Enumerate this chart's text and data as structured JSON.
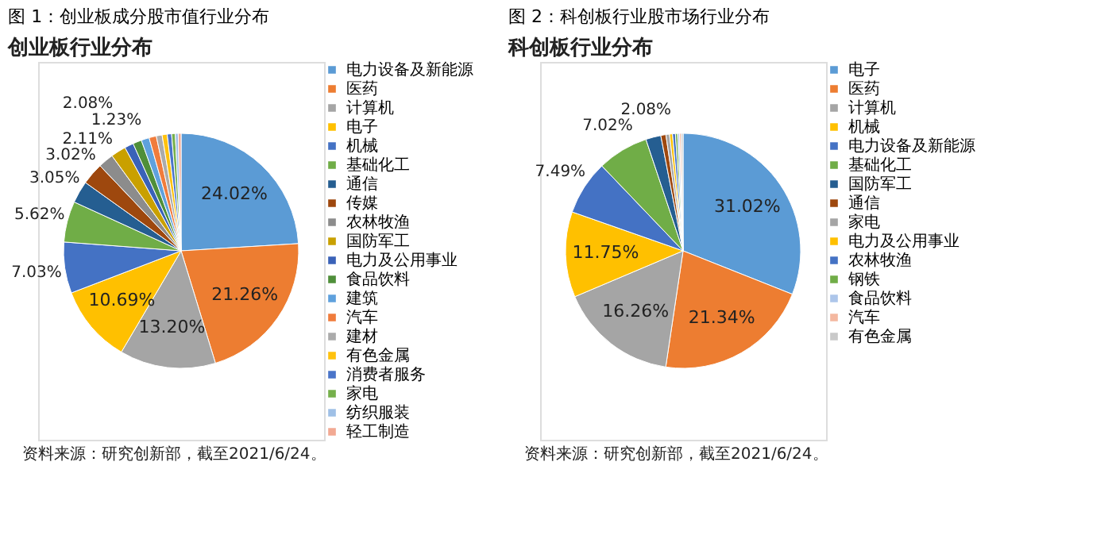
{
  "chart_data": [
    {
      "type": "pie",
      "title": "图 1：创业板成分股市值行业分布",
      "subtitle": "创业板行业分布",
      "categories": [
        "电力设备及新能源",
        "医药",
        "计算机",
        "电子",
        "机械",
        "基础化工",
        "通信",
        "传媒",
        "农林牧渔",
        "国防军工",
        "电力及公用事业",
        "食品饮料",
        "建筑",
        "汽车",
        "建材",
        "有色金属",
        "消费者服务",
        "家电",
        "纺织服装",
        "轻工制造"
      ],
      "values": [
        24.02,
        21.26,
        13.2,
        10.69,
        7.03,
        5.62,
        3.05,
        3.02,
        2.11,
        2.08,
        1.23,
        1.2,
        1.1,
        1.0,
        0.8,
        0.7,
        0.6,
        0.5,
        0.4,
        0.39
      ],
      "value_labels": [
        "24.02%",
        "21.26%",
        "13.20%",
        "10.69%",
        "7.03%",
        "5.62%",
        "3.05%",
        "3.02%",
        "2.11%",
        "2.08%",
        "1.23%",
        null,
        null,
        null,
        null,
        null,
        null,
        null,
        null,
        null
      ],
      "colors": [
        "#5b9bd5",
        "#ed7d31",
        "#a5a5a5",
        "#ffc000",
        "#4472c4",
        "#70ad47",
        "#255e91",
        "#9e480e",
        "#8c8c8c",
        "#c9a000",
        "#3a62b8",
        "#4f8f3a",
        "#5fa1dd",
        "#f07c3c",
        "#ababab",
        "#ffc20e",
        "#4a74c9",
        "#76b04c",
        "#9fc0e6",
        "#f2a993"
      ],
      "legend": "right",
      "annotations": [
        "资料来源：研究创新部，截至2021/6/24。"
      ]
    },
    {
      "type": "pie",
      "title": "图 2：科创板行业股市场行业分布",
      "subtitle": "科创板行业分布",
      "categories": [
        "电子",
        "医药",
        "计算机",
        "机械",
        "电力设备及新能源",
        "基础化工",
        "国防军工",
        "通信",
        "家电",
        "电力及公用事业",
        "农林牧渔",
        "钢铁",
        "食品饮料",
        "汽车",
        "有色金属"
      ],
      "values": [
        31.02,
        21.34,
        16.26,
        11.75,
        7.49,
        7.02,
        2.08,
        0.7,
        0.5,
        0.4,
        0.4,
        0.3,
        0.25,
        0.24,
        0.25
      ],
      "value_labels": [
        "31.02%",
        "21.34%",
        "16.26%",
        "11.75%",
        "7.49%",
        "7.02%",
        "2.08%",
        null,
        null,
        null,
        null,
        null,
        null,
        null,
        null
      ],
      "colors": [
        "#5b9bd5",
        "#ed7d31",
        "#a5a5a5",
        "#ffc000",
        "#4472c4",
        "#70ad47",
        "#255e91",
        "#9e480e",
        "#a5a5a5",
        "#ffc000",
        "#4472c4",
        "#70ad47",
        "#adc6ea",
        "#f4b8a0",
        "#c9c9c9"
      ],
      "legend": "right",
      "annotations": [
        "资料来源：研究创新部，截至2021/6/24。"
      ]
    }
  ]
}
